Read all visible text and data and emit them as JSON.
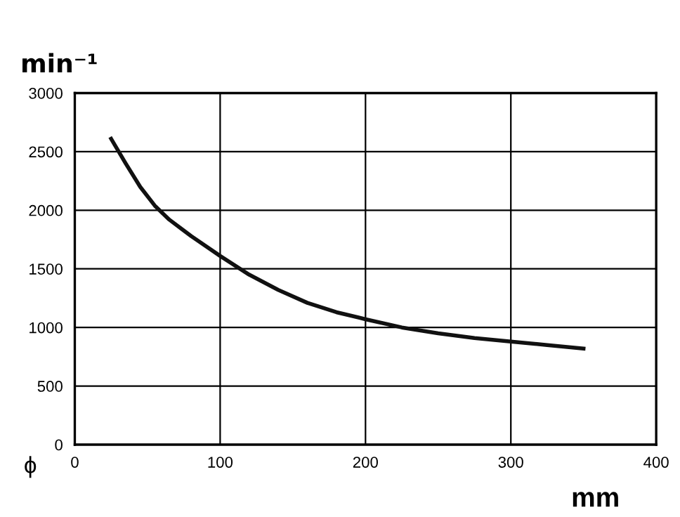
{
  "chart_data": {
    "type": "line",
    "xlabel": "mm",
    "ylabel": "min⁻¹",
    "annotations": [
      "ϕ"
    ],
    "series": [
      {
        "color": "#111111",
        "x": [
          25,
          35,
          45,
          55,
          65,
          80,
          100,
          120,
          140,
          160,
          180,
          200,
          225,
          250,
          275,
          300,
          325,
          350
        ],
        "values": [
          2610,
          2400,
          2200,
          2040,
          1920,
          1780,
          1610,
          1450,
          1320,
          1210,
          1130,
          1070,
          1000,
          950,
          910,
          880,
          850,
          820
        ]
      }
    ],
    "xlim": [
      0,
      400
    ],
    "xticks": [
      0,
      100,
      200,
      300,
      400
    ],
    "ylim": [
      0,
      3000
    ],
    "yticks": [
      0,
      500,
      1000,
      1500,
      2000,
      2500,
      3000
    ],
    "grid": true,
    "marker": "none",
    "line_style": "solid"
  }
}
